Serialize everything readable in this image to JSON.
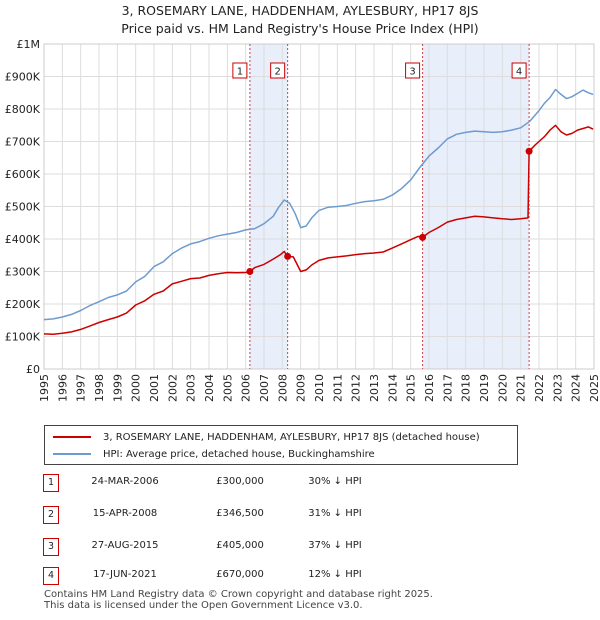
{
  "title_line1": "3, ROSEMARY LANE, HADDENHAM, AYLESBURY, HP17 8JS",
  "title_line2": "Price paid vs. HM Land Registry's House Price Index (HPI)",
  "chart_data": {
    "type": "line",
    "title": "3, ROSEMARY LANE, HADDENHAM, AYLESBURY, HP17 8JS",
    "subtitle": "Price paid vs. HM Land Registry's House Price Index (HPI)",
    "xlabel": "",
    "ylabel": "",
    "xlim": [
      1995,
      2025
    ],
    "ylim": [
      0,
      1000000
    ],
    "grid": true,
    "legend_position": "bottom",
    "y_ticks": [
      {
        "value": 0,
        "label": "£0"
      },
      {
        "value": 100000,
        "label": "£100K"
      },
      {
        "value": 200000,
        "label": "£200K"
      },
      {
        "value": 300000,
        "label": "£300K"
      },
      {
        "value": 400000,
        "label": "£400K"
      },
      {
        "value": 500000,
        "label": "£500K"
      },
      {
        "value": 600000,
        "label": "£600K"
      },
      {
        "value": 700000,
        "label": "£700K"
      },
      {
        "value": 800000,
        "label": "£800K"
      },
      {
        "value": 900000,
        "label": "£900K"
      },
      {
        "value": 1000000,
        "label": "£1M"
      }
    ],
    "x_ticks": [
      "1995",
      "1996",
      "1997",
      "1998",
      "1999",
      "2000",
      "2001",
      "2002",
      "2003",
      "2004",
      "2005",
      "2006",
      "2007",
      "2008",
      "2009",
      "2010",
      "2011",
      "2012",
      "2013",
      "2014",
      "2015",
      "2016",
      "2017",
      "2018",
      "2019",
      "2020",
      "2021",
      "2022",
      "2023",
      "2024",
      "2025"
    ],
    "shaded_periods": [
      [
        2006.23,
        2008.29
      ],
      [
        2015.65,
        2021.46
      ]
    ],
    "series": [
      {
        "name": "3, ROSEMARY LANE, HADDENHAM, AYLESBURY, HP17 8JS (detached house)",
        "color": "#cc0000",
        "x": [
          1995.0,
          1995.5,
          1996.0,
          1996.5,
          1997.0,
          1997.5,
          1998.0,
          1998.5,
          1999.0,
          1999.5,
          2000.0,
          2000.5,
          2001.0,
          2001.5,
          2002.0,
          2002.5,
          2003.0,
          2003.5,
          2004.0,
          2004.5,
          2005.0,
          2005.5,
          2006.0,
          2006.23,
          2006.5,
          2007.0,
          2007.5,
          2007.9,
          2008.1,
          2008.29,
          2008.6,
          2009.0,
          2009.3,
          2009.6,
          2010.0,
          2010.5,
          2011.0,
          2011.5,
          2012.0,
          2012.5,
          2013.0,
          2013.5,
          2014.0,
          2014.5,
          2015.0,
          2015.4,
          2015.65,
          2016.0,
          2016.5,
          2017.0,
          2017.5,
          2018.0,
          2018.5,
          2019.0,
          2019.5,
          2020.0,
          2020.5,
          2021.0,
          2021.4,
          2021.46,
          2021.8,
          2022.0,
          2022.3,
          2022.6,
          2022.9,
          2023.2,
          2023.5,
          2023.8,
          2024.1,
          2024.4,
          2024.7,
          2024.95
        ],
        "y": [
          108000,
          107000,
          110000,
          114000,
          122000,
          132000,
          143000,
          152000,
          160000,
          172000,
          197000,
          210000,
          230000,
          240000,
          262000,
          270000,
          278000,
          280000,
          288000,
          293000,
          297000,
          296000,
          297000,
          300000,
          312000,
          322000,
          338000,
          352000,
          362000,
          346500,
          345000,
          300000,
          305000,
          320000,
          334000,
          342000,
          345000,
          348000,
          352000,
          355000,
          357000,
          360000,
          372000,
          385000,
          398000,
          408000,
          405000,
          420000,
          435000,
          452000,
          460000,
          465000,
          470000,
          468000,
          465000,
          462000,
          460000,
          462000,
          465000,
          670000,
          690000,
          700000,
          715000,
          735000,
          750000,
          730000,
          720000,
          725000,
          735000,
          740000,
          745000,
          738000
        ]
      },
      {
        "name": "HPI: Average price, detached house, Buckinghamshire",
        "color": "#6e9bcf",
        "x": [
          1995.0,
          1995.5,
          1996.0,
          1996.5,
          1997.0,
          1997.5,
          1998.0,
          1998.5,
          1999.0,
          1999.5,
          2000.0,
          2000.5,
          2001.0,
          2001.5,
          2002.0,
          2002.5,
          2003.0,
          2003.5,
          2004.0,
          2004.5,
          2005.0,
          2005.5,
          2006.0,
          2006.5,
          2007.0,
          2007.5,
          2007.8,
          2008.1,
          2008.4,
          2008.7,
          2009.0,
          2009.3,
          2009.6,
          2010.0,
          2010.5,
          2011.0,
          2011.5,
          2012.0,
          2012.5,
          2013.0,
          2013.5,
          2014.0,
          2014.5,
          2015.0,
          2015.5,
          2016.0,
          2016.5,
          2017.0,
          2017.5,
          2018.0,
          2018.5,
          2019.0,
          2019.5,
          2020.0,
          2020.5,
          2021.0,
          2021.5,
          2022.0,
          2022.3,
          2022.6,
          2022.9,
          2023.2,
          2023.5,
          2023.8,
          2024.1,
          2024.4,
          2024.7,
          2024.95
        ],
        "y": [
          152000,
          154000,
          160000,
          168000,
          180000,
          195000,
          207000,
          220000,
          228000,
          240000,
          268000,
          285000,
          315000,
          330000,
          355000,
          372000,
          385000,
          392000,
          402000,
          410000,
          415000,
          420000,
          428000,
          432000,
          447000,
          470000,
          498000,
          520000,
          510000,
          478000,
          435000,
          440000,
          465000,
          488000,
          498000,
          500000,
          503000,
          510000,
          515000,
          518000,
          522000,
          535000,
          555000,
          582000,
          620000,
          655000,
          680000,
          708000,
          722000,
          728000,
          732000,
          730000,
          728000,
          730000,
          735000,
          742000,
          762000,
          795000,
          818000,
          835000,
          860000,
          845000,
          832000,
          838000,
          848000,
          858000,
          850000,
          845000
        ]
      }
    ],
    "sales": [
      {
        "label": "1",
        "x": 2006.23,
        "y": 300000
      },
      {
        "label": "2",
        "x": 2008.29,
        "y": 346500
      },
      {
        "label": "3",
        "x": 2015.65,
        "y": 405000
      },
      {
        "label": "4",
        "x": 2021.46,
        "y": 670000
      }
    ]
  },
  "legend": {
    "property_label": "3, ROSEMARY LANE, HADDENHAM, AYLESBURY, HP17 8JS (detached house)",
    "hpi_label": "HPI: Average price, detached house, Buckinghamshire"
  },
  "transactions": [
    {
      "num": "1",
      "date": "24-MAR-2006",
      "price": "£300,000",
      "hpi": "30% ↓ HPI"
    },
    {
      "num": "2",
      "date": "15-APR-2008",
      "price": "£346,500",
      "hpi": "31% ↓ HPI"
    },
    {
      "num": "3",
      "date": "27-AUG-2015",
      "price": "£405,000",
      "hpi": "37% ↓ HPI"
    },
    {
      "num": "4",
      "date": "17-JUN-2021",
      "price": "£670,000",
      "hpi": "12% ↓ HPI"
    }
  ],
  "footer": {
    "line1": "Contains HM Land Registry data © Crown copyright and database right 2025.",
    "line2": "This data is licensed under the Open Government Licence v3.0."
  }
}
